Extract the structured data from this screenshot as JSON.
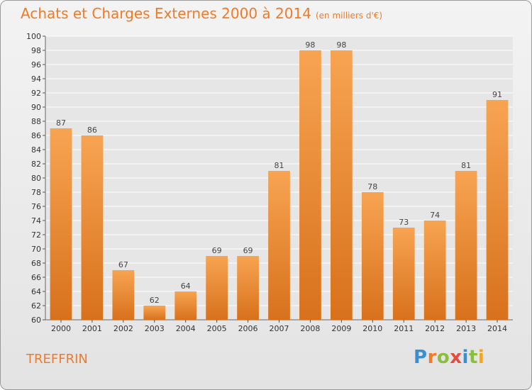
{
  "header": {
    "title": "Achats et Charges Externes 2000 à 2014",
    "unit": "(en milliers d'€)"
  },
  "footer": {
    "place": "TREFFRIN",
    "brand": "Proxiti"
  },
  "colors": {
    "accent": "#f07a26",
    "bar_top": "#f7a452",
    "bar_bottom": "#d8711c",
    "grid": "#ffffff",
    "brand_letters": [
      "#3a8fd1",
      "#f07a26",
      "#8bbf3a",
      "#e84b3c",
      "#3a8fd1",
      "#8bbf3a",
      "#f0a526"
    ]
  },
  "chart_data": {
    "type": "bar",
    "title": "Achats et Charges Externes 2000 à 2014",
    "subtitle": "(en milliers d'€)",
    "categories": [
      "2000",
      "2001",
      "2002",
      "2003",
      "2004",
      "2005",
      "2006",
      "2007",
      "2008",
      "2009",
      "2010",
      "2011",
      "2012",
      "2013",
      "2014"
    ],
    "values": [
      87,
      86,
      67,
      62,
      64,
      69,
      69,
      81,
      98,
      98,
      78,
      73,
      74,
      81,
      91
    ],
    "ylim": [
      60,
      100
    ],
    "yticks": [
      60,
      62,
      64,
      66,
      68,
      70,
      72,
      74,
      76,
      78,
      80,
      82,
      84,
      86,
      88,
      90,
      92,
      94,
      96,
      98,
      100
    ],
    "grid": true,
    "data_labels": true
  }
}
